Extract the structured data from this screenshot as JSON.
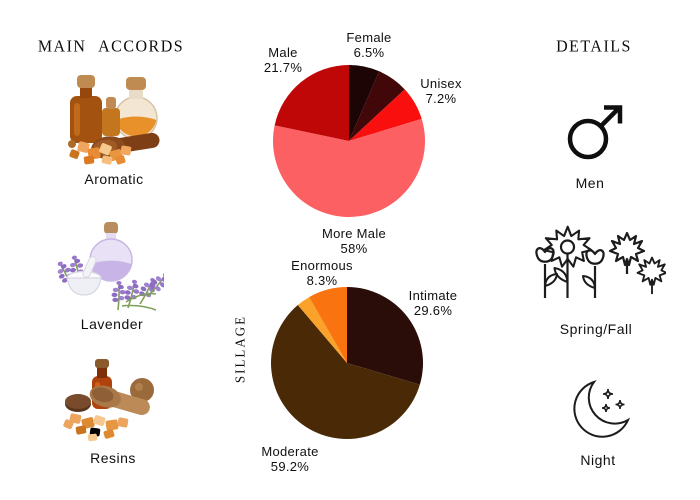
{
  "sections": {
    "main_accords": {
      "title": "MAIN ACCORDS",
      "items": [
        {
          "label": "Aromatic",
          "image": "amber-bottles-and-resin-chunks-photo"
        },
        {
          "label": "Lavender",
          "image": "lavender-bottle-mortar-and-sprigs-photo"
        },
        {
          "label": "Resins",
          "image": "resin-bottle-and-wooden-scoop-photo"
        }
      ]
    },
    "details": {
      "title": "DETAILS",
      "items": [
        {
          "label": "Men",
          "icon": "male-symbol-icon"
        },
        {
          "label": "Spring/Fall",
          "icon": "flowers-and-maple-leaves-icon"
        },
        {
          "label": "Night",
          "icon": "crescent-moon-stars-icon"
        }
      ]
    }
  },
  "chart_data": [
    {
      "type": "pie",
      "name": "gender-votes",
      "direction": "clockwise",
      "start_angle_deg": 0,
      "segments": [
        {
          "label": "Female",
          "pct": "6.5%",
          "value": 6.5,
          "color": "#1e0505"
        },
        {
          "label": "",
          "pct": "",
          "value": 6.6,
          "color": "#420708"
        },
        {
          "label": "Unisex",
          "pct": "7.2%",
          "value": 7.2,
          "color": "#fa0f0f"
        },
        {
          "label": "More Male",
          "pct": "58%",
          "value": 58.0,
          "color": "#fc6063"
        },
        {
          "label": "Male",
          "pct": "21.7%",
          "value": 21.7,
          "color": "#c00708"
        }
      ]
    },
    {
      "type": "pie",
      "name": "sillage-votes",
      "axis_label": "SILLAGE",
      "direction": "clockwise",
      "start_angle_deg": 0,
      "segments": [
        {
          "label": "Intimate",
          "pct": "29.6%",
          "value": 29.6,
          "color": "#2a0c08"
        },
        {
          "label": "Moderate",
          "pct": "59.2%",
          "value": 59.2,
          "color": "#4a2a06"
        },
        {
          "label": "",
          "pct": "",
          "value": 2.9,
          "color": "#fba22a"
        },
        {
          "label": "Enormous",
          "pct": "8.3%",
          "value": 8.3,
          "color": "#f97310"
        }
      ]
    }
  ]
}
